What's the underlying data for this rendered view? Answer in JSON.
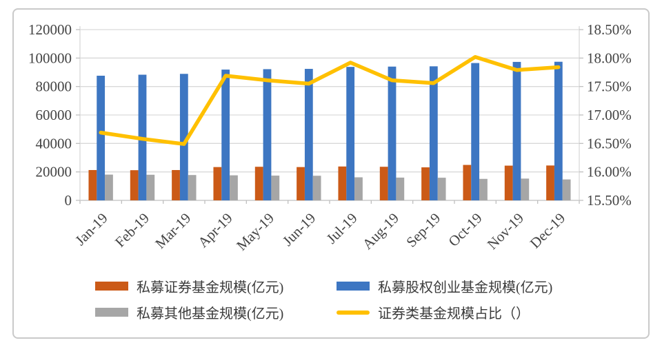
{
  "chart_data": {
    "type": "combo-bar-line",
    "title": "",
    "categories": [
      "Jan-19",
      "Feb-19",
      "Mar-19",
      "Apr-19",
      "May-19",
      "Jun-19",
      "Jul-19",
      "Aug-19",
      "Sep-19",
      "Oct-19",
      "Nov-19",
      "Dec-19"
    ],
    "series": [
      {
        "name": "私募证券基金规模(亿元)",
        "type": "bar",
        "axis": "left",
        "color": "#cb5a17",
        "values": [
          21300,
          21200,
          21300,
          23400,
          23600,
          23400,
          23800,
          23600,
          23200,
          24900,
          24400,
          24500
        ]
      },
      {
        "name": "私募股权创业基金规模(亿元)",
        "type": "bar",
        "axis": "left",
        "color": "#3d76c2",
        "values": [
          87600,
          88300,
          88900,
          91900,
          92200,
          92400,
          93800,
          94000,
          94200,
          96500,
          97300,
          97400
        ]
      },
      {
        "name": "私募其他基金规模(亿元)",
        "type": "bar",
        "axis": "left",
        "color": "#a6a6a6",
        "values": [
          18100,
          18000,
          17800,
          17600,
          17400,
          17300,
          16200,
          16000,
          15900,
          15100,
          15300,
          14700
        ]
      },
      {
        "name": "证券类基金规模占比（）",
        "type": "line",
        "axis": "right",
        "color": "#ffc000",
        "values": [
          16.69,
          16.58,
          16.49,
          17.69,
          17.61,
          17.55,
          17.92,
          17.61,
          17.56,
          18.02,
          17.79,
          17.84
        ]
      }
    ],
    "left_axis": {
      "min": 0,
      "max": 120000,
      "step": 20000,
      "tick_labels": [
        "120000",
        "100000",
        "80000",
        "60000",
        "40000",
        "20000",
        "0"
      ]
    },
    "right_axis": {
      "min": 15.5,
      "max": 18.5,
      "step": 0.5,
      "tick_labels": [
        "18.50%",
        "18.00%",
        "17.50%",
        "17.00%",
        "16.50%",
        "16.00%",
        "15.50%"
      ]
    },
    "grid": true,
    "legend_position": "bottom",
    "colors": {
      "gridline": "#d9d9d9",
      "axis_line": "#bfbfbf",
      "tick_text": "#434343",
      "frame_border": "#c9c9c9"
    }
  }
}
